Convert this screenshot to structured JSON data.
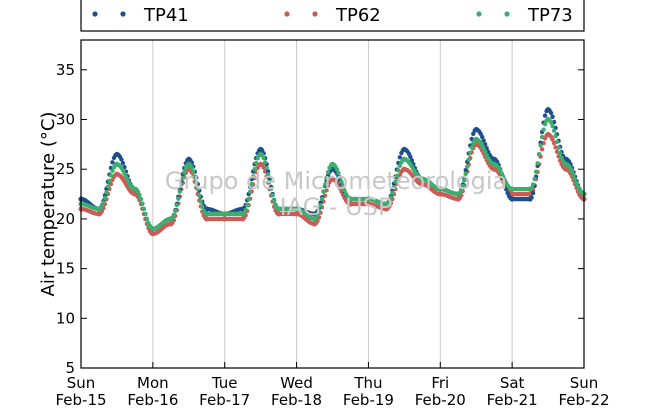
{
  "chart_data": {
    "type": "scatter",
    "title": "",
    "xlabel": "",
    "ylabel": "Air temperature (°C)",
    "ylim": [
      5,
      38
    ],
    "yticks": [
      5,
      10,
      15,
      20,
      25,
      30,
      35
    ],
    "xlim": [
      "2015-02-15",
      "2015-02-22"
    ],
    "x_tick_labels": [
      [
        "Sun",
        "Feb-15"
      ],
      [
        "Mon",
        "Feb-16"
      ],
      [
        "Tue",
        "Feb-17"
      ],
      [
        "Wed",
        "Feb-18"
      ],
      [
        "Thu",
        "Feb-19"
      ],
      [
        "Fri",
        "Feb-20"
      ],
      [
        "Sat",
        "Feb-21"
      ],
      [
        "Sun",
        "Feb-22"
      ]
    ],
    "grid": "vertical",
    "legend_position": "top",
    "watermark": [
      "Grupo de Micrometeorologia",
      "IAG - USP"
    ],
    "x": [
      "Feb-15 00:00",
      "Feb-15 06:00",
      "Feb-15 12:00",
      "Feb-15 18:00",
      "Feb-16 00:00",
      "Feb-16 06:00",
      "Feb-16 12:00",
      "Feb-16 18:00",
      "Feb-17 00:00",
      "Feb-17 06:00",
      "Feb-17 12:00",
      "Feb-17 18:00",
      "Feb-18 00:00",
      "Feb-18 06:00",
      "Feb-18 12:00",
      "Feb-18 18:00",
      "Feb-19 00:00",
      "Feb-19 06:00",
      "Feb-19 12:00",
      "Feb-19 18:00",
      "Feb-20 00:00",
      "Feb-20 06:00",
      "Feb-20 12:00",
      "Feb-20 18:00",
      "Feb-21 00:00",
      "Feb-21 06:00",
      "Feb-21 12:00",
      "Feb-21 18:00",
      "Feb-22 00:00"
    ],
    "series": [
      {
        "name": "TP41",
        "color": "#1f4e8c",
        "values": [
          22,
          21,
          26.5,
          23,
          19,
          20,
          26,
          21,
          20.5,
          21,
          27,
          21,
          21,
          20.5,
          25,
          22,
          22,
          21.5,
          27,
          24,
          23,
          22.5,
          29,
          26,
          22,
          22,
          31,
          26,
          22.5
        ]
      },
      {
        "name": "TP62",
        "color": "#cc5b55",
        "values": [
          21,
          20.5,
          24.5,
          22.5,
          18.5,
          19.5,
          25,
          20,
          20,
          20,
          25.5,
          20.5,
          20.5,
          19.5,
          24,
          21.5,
          21.5,
          21,
          25,
          23.5,
          22.5,
          22,
          27.5,
          25,
          22.5,
          22.5,
          28.5,
          25,
          22
        ]
      },
      {
        "name": "TP73",
        "color": "#3cae6e",
        "values": [
          21.5,
          21,
          25.5,
          23,
          19,
          20,
          25.5,
          20.5,
          20.5,
          20.5,
          26.5,
          21,
          21,
          20,
          25.5,
          22,
          22,
          21.5,
          26,
          24,
          23,
          22.5,
          28,
          25.5,
          23,
          23,
          30,
          25.5,
          22.5
        ]
      }
    ]
  }
}
